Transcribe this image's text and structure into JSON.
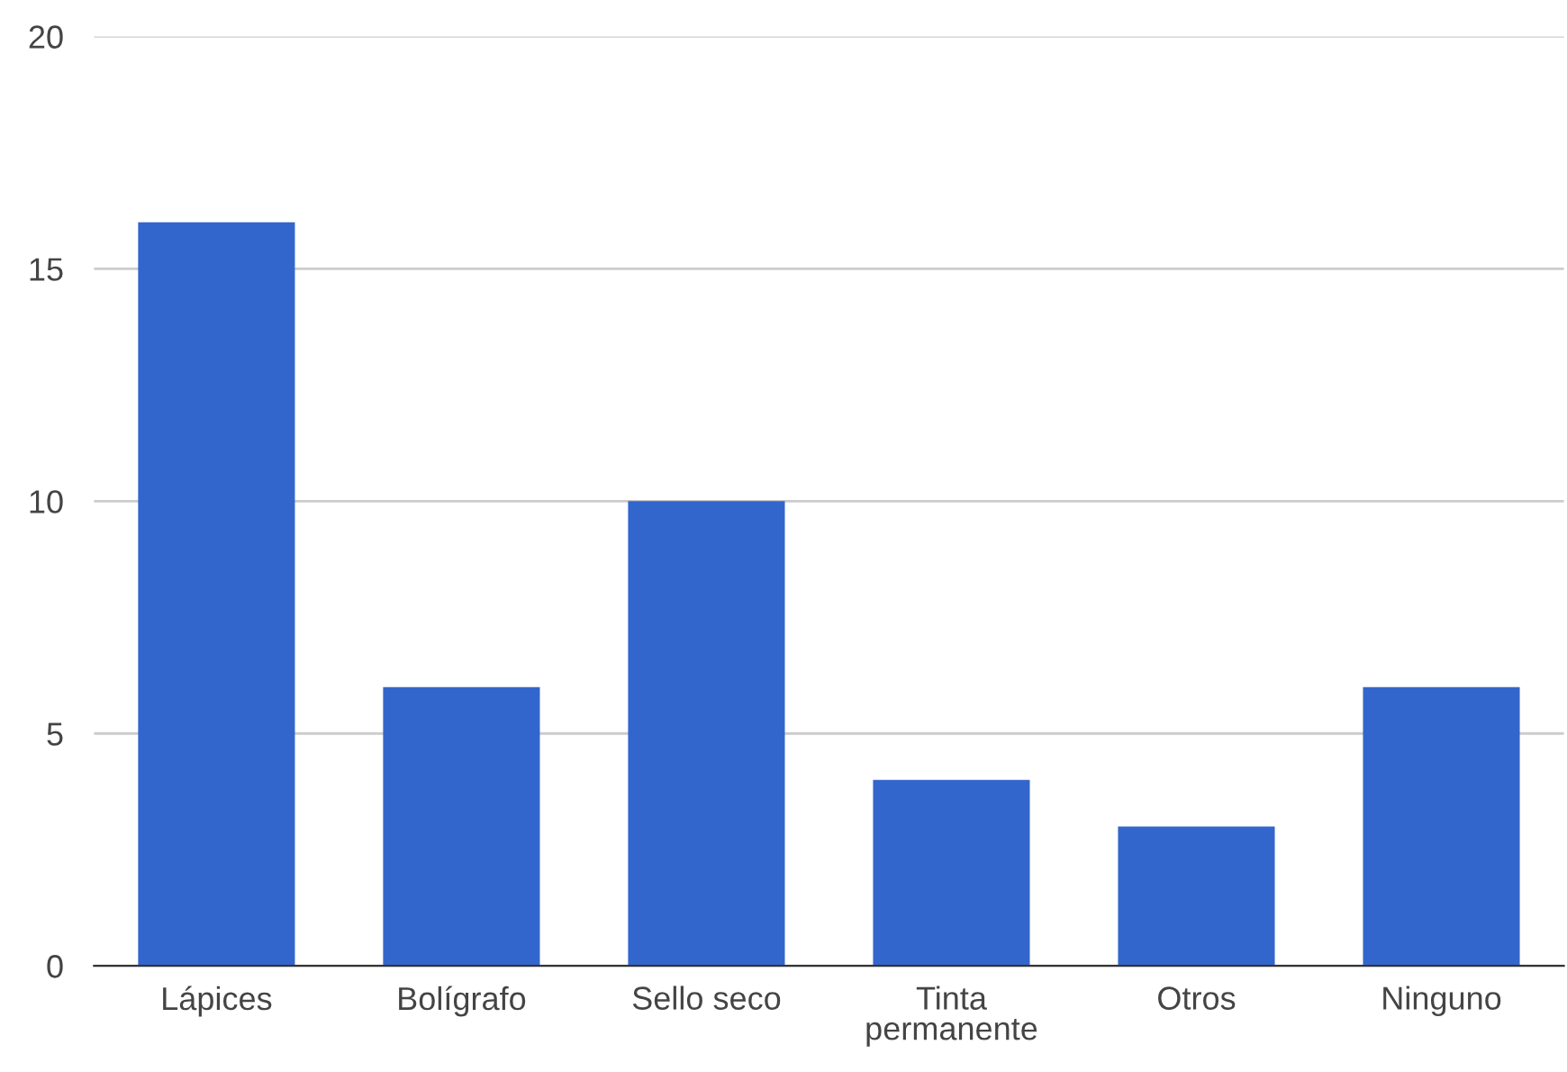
{
  "chart_data": {
    "type": "bar",
    "categories": [
      "Lápices",
      "Bolígrafo",
      "Sello seco",
      "Tinta permanente",
      "Otros",
      "Ninguno"
    ],
    "values": [
      16,
      6,
      10,
      4,
      3,
      6
    ],
    "color": "#3366cc",
    "ylim": [
      0,
      20
    ],
    "yticks": [
      0,
      5,
      10,
      15,
      20
    ],
    "grid": "y",
    "legend": false
  }
}
